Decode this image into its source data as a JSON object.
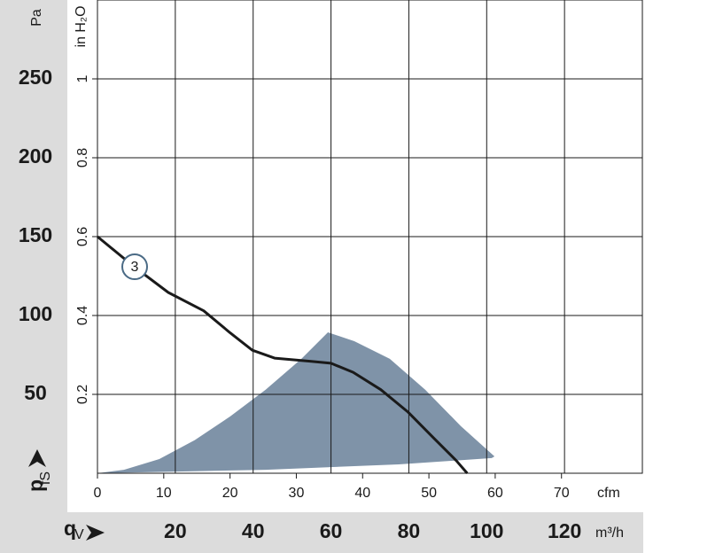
{
  "chart_data": {
    "type": "line",
    "y_label": "Pa",
    "y2_label": "in H₂O",
    "y_symbol": {
      "main": "p",
      "sub": "fS"
    },
    "x_symbol": {
      "main": "q",
      "sub": "V"
    },
    "x_unit": "m³/h",
    "x2_unit": "cfm",
    "xlim": [
      0,
      140
    ],
    "xticks": [
      20,
      40,
      60,
      80,
      100,
      120
    ],
    "x2lim": [
      0,
      82.2
    ],
    "x2ticks": [
      0,
      10,
      20,
      30,
      40,
      50,
      60,
      70
    ],
    "ylim": [
      0,
      300
    ],
    "yticks": [
      50,
      100,
      150,
      200,
      250
    ],
    "y2lim": [
      0,
      1.2
    ],
    "y2ticks": [
      0.2,
      0.4,
      0.6,
      0.8,
      1
    ],
    "grid": true,
    "series": [
      {
        "name": "3",
        "color": "#1a1a1a",
        "x": [
          0,
          9.1,
          18.2,
          27.3,
          34.1,
          39.8,
          45.5,
          54.6,
          60,
          65.7,
          72.8,
          79.7,
          86.5,
          92.2,
          95
        ],
        "values": [
          150,
          131.5,
          114.6,
          103,
          89,
          78,
          73,
          71,
          69.7,
          64,
          53,
          39,
          22,
          8,
          0
        ]
      }
    ],
    "operating_range": {
      "color": "#7f93a8",
      "x": [
        0,
        6.8,
        15.9,
        25,
        34.1,
        43.2,
        52.4,
        59.2,
        66,
        75.1,
        84.2,
        93.3,
        102,
        101.3,
        77.4,
        43.2,
        0
      ],
      "values": [
        0,
        2.2,
        9,
        21,
        36,
        53,
        72.5,
        89.3,
        83.7,
        72.5,
        53,
        30,
        10.7,
        9.6,
        5.6,
        2.2,
        0
      ]
    }
  }
}
